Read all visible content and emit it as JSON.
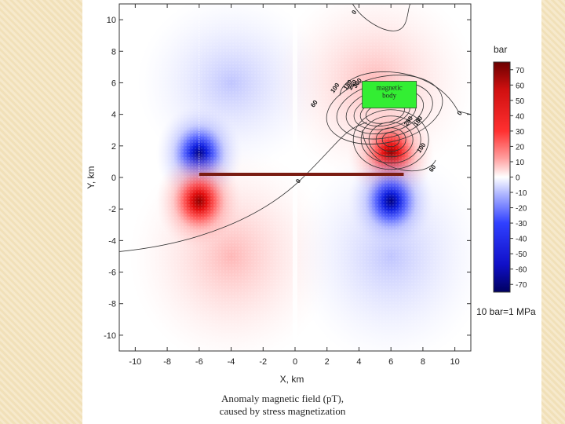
{
  "chart_data": {
    "type": "heatmap",
    "xlabel": "X, km",
    "ylabel": "Y, km",
    "xlim": [
      -11,
      11
    ],
    "ylim": [
      -11,
      11
    ],
    "x_ticks": [
      -10,
      -8,
      -6,
      -4,
      -2,
      0,
      2,
      4,
      6,
      8,
      10
    ],
    "y_ticks": [
      10,
      8,
      6,
      4,
      2,
      0,
      -2,
      -4,
      -6,
      -8,
      -10
    ],
    "field_extrema": [
      {
        "x": -6,
        "y": 1.5,
        "sign": "negative"
      },
      {
        "x": -6,
        "y": -1.5,
        "sign": "positive"
      },
      {
        "x": 6,
        "y": 1.5,
        "sign": "positive"
      },
      {
        "x": 6,
        "y": -1.5,
        "sign": "negative"
      }
    ],
    "fault_line": {
      "x": [
        -6,
        6.8
      ],
      "y": [
        0.2,
        0.2
      ]
    },
    "magnetic_body": {
      "label": "magnetic\nbody",
      "x": [
        4.2,
        7.6
      ],
      "y": [
        4.4,
        6.1
      ]
    },
    "contour_labels": [
      {
        "text": "0",
        "x": 3.8,
        "y": 10.4
      },
      {
        "text": "0",
        "x": 10.4,
        "y": 4.0
      },
      {
        "text": "0",
        "x": 0.3,
        "y": -0.3
      },
      {
        "text": "60",
        "x": 1.3,
        "y": 4.6
      },
      {
        "text": "60",
        "x": 8.7,
        "y": 0.5
      },
      {
        "text": "100",
        "x": 2.6,
        "y": 5.6
      },
      {
        "text": "100",
        "x": 8.0,
        "y": 1.8
      },
      {
        "text": "180",
        "x": 3.4,
        "y": 5.8
      },
      {
        "text": "260",
        "x": 3.7,
        "y": 5.8
      },
      {
        "text": "300",
        "x": 4.0,
        "y": 5.9
      },
      {
        "text": "260",
        "x": 7.2,
        "y": 3.5
      },
      {
        "text": "180",
        "x": 7.8,
        "y": 3.5
      }
    ],
    "colorbar": {
      "title": "bar",
      "ticks": [
        70,
        60,
        50,
        40,
        30,
        20,
        10,
        0,
        -10,
        -20,
        -30,
        -40,
        -50,
        -60,
        -70
      ],
      "range": [
        -75,
        75
      ],
      "note": "10 bar=1 MPa"
    },
    "caption": [
      "Anomaly magnetic field (pT),",
      "caused by stress magnetization"
    ],
    "colors": {
      "positive": "#e11010",
      "negative": "#1020d8",
      "fault": "#7a1c12",
      "body": "#33ee33"
    }
  }
}
